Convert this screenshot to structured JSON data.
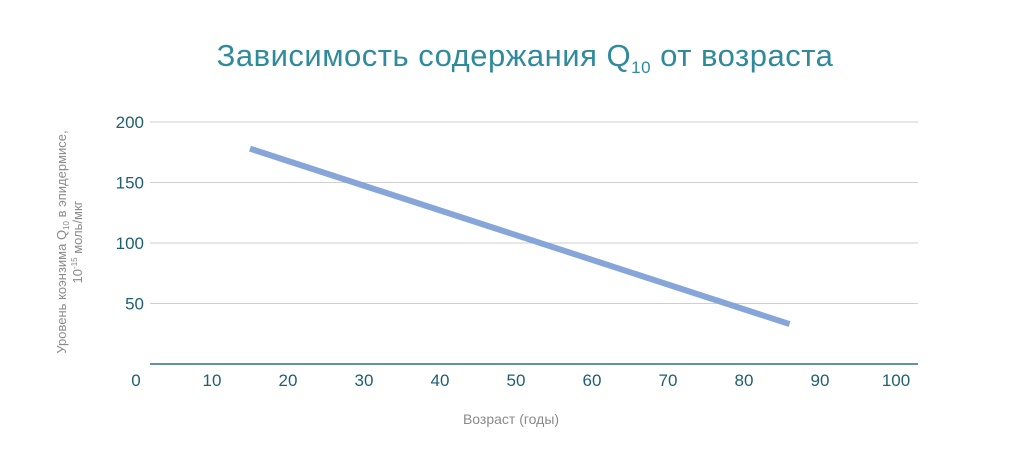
{
  "chart_data": {
    "type": "line",
    "title": {
      "prefix": "Зависимость содержания Q",
      "subscript": "10",
      "suffix": " от возраста"
    },
    "xlabel": "Возраст (годы)",
    "ylabel": {
      "line1_prefix": "Уровень коэнзима Q",
      "line1_subscript": "10",
      "line1_suffix": " в эпидермисе,",
      "line2_prefix": "10",
      "line2_superscript": "-15",
      "line2_suffix": " моль/мкг"
    },
    "x_ticks": [
      "0",
      "10",
      "20",
      "30",
      "40",
      "50",
      "60",
      "70",
      "80",
      "90",
      "100"
    ],
    "y_ticks": [
      "50",
      "100",
      "150",
      "200"
    ],
    "xlim": [
      0,
      100
    ],
    "ylim": [
      0,
      200
    ],
    "grid": true,
    "series": [
      {
        "x": [
          15,
          86
        ],
        "y": [
          178,
          33
        ],
        "color": "#86a5d8"
      }
    ]
  }
}
